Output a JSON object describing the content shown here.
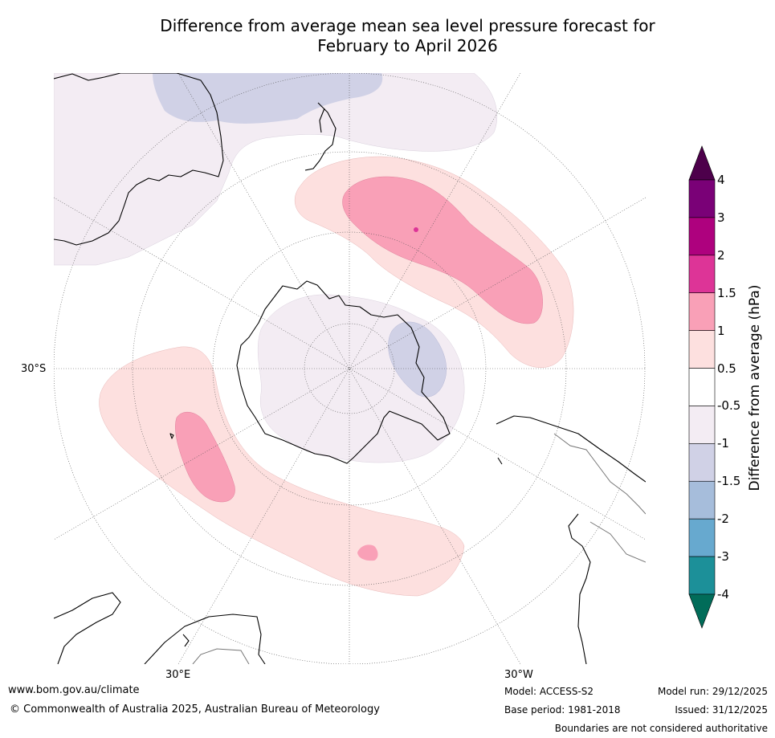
{
  "title": {
    "line1": "Difference from average mean sea level pressure forecast for",
    "line2": "February to April 2026"
  },
  "map": {
    "projection": "south-polar-stereographic",
    "latitude_labels": [
      "30°S"
    ],
    "longitude_labels": [
      "30°E",
      "30°W"
    ],
    "regions": [
      {
        "name": "pressure-anomaly-southern-pacific",
        "category": "1 to 1.5",
        "color": "#f9a0b7"
      },
      {
        "name": "pressure-anomaly-southern-pacific-outer",
        "category": "0.5 to 1",
        "color": "#fde0df"
      },
      {
        "name": "pressure-anomaly-southern-indian",
        "category": "1 to 1.5",
        "color": "#f9a0b7"
      },
      {
        "name": "pressure-anomaly-southern-indian-outer",
        "category": "0.5 to 1",
        "color": "#fde0df"
      },
      {
        "name": "pressure-anomaly-antarctica",
        "category": "-1 to -0.5",
        "color": "#f3ecf3"
      },
      {
        "name": "pressure-anomaly-tasman",
        "category": "-1.5 to -1",
        "color": "#d0d1e6"
      },
      {
        "name": "pressure-anomaly-weddell",
        "category": "-1.5 to -1",
        "color": "#d0d1e6"
      }
    ]
  },
  "colorbar": {
    "title": "Difference from average (hPa)",
    "ticks": [
      "4",
      "3",
      "2",
      "1.5",
      "1",
      "0.5",
      "-0.5",
      "-1",
      "-1.5",
      "-2",
      "-3",
      "-4"
    ],
    "bins": [
      {
        "label": "above 4",
        "color": "#4d004b"
      },
      {
        "label": "3 to 4",
        "color": "#7a0177"
      },
      {
        "label": "2 to 3",
        "color": "#ae017e"
      },
      {
        "label": "1.5 to 2",
        "color": "#dd3497"
      },
      {
        "label": "1 to 1.5",
        "color": "#f9a0b7"
      },
      {
        "label": "0.5 to 1",
        "color": "#fde0df"
      },
      {
        "label": "-0.5 to 0.5",
        "color": "#ffffff"
      },
      {
        "label": "-1 to -0.5",
        "color": "#f3ecf3"
      },
      {
        "label": "-1.5 to -1",
        "color": "#d0d1e6"
      },
      {
        "label": "-2 to -1.5",
        "color": "#a6bddb"
      },
      {
        "label": "-3 to -2",
        "color": "#67a9cf"
      },
      {
        "label": "-4 to -3",
        "color": "#1c9099"
      },
      {
        "label": "below -4",
        "color": "#016c59"
      }
    ]
  },
  "footer": {
    "website": "www.bom.gov.au/climate",
    "copyright": "© Commonwealth of Australia 2025, Australian Bureau of Meteorology",
    "model": "Model: ACCESS-S2",
    "base_period": "Base period: 1981-2018",
    "model_run": "Model run: 29/12/2025",
    "issued": "Issued: 31/12/2025",
    "disclaimer": "Boundaries are not considered authoritative"
  }
}
